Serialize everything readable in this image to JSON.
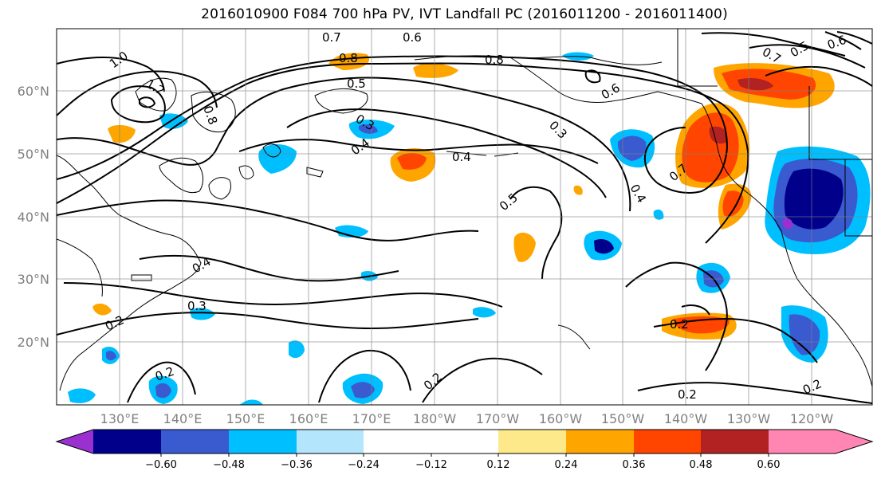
{
  "title": "2016010900 F084 700 hPa PV, IVT Landfall PC (2016011200 - 2016011400)",
  "lat_labels": [
    "60°N",
    "50°N",
    "40°N",
    "30°N",
    "20°N"
  ],
  "lon_labels": [
    "130°E",
    "140°E",
    "150°E",
    "160°E",
    "170°E",
    "180°W",
    "170°W",
    "160°W",
    "150°W",
    "140°W",
    "130°W",
    "120°W"
  ],
  "contour_labels": [
    "0.7",
    "0.6",
    "1.0",
    "0.8",
    "0.8",
    "1.2",
    "0.5",
    "0.8",
    "0.3",
    "0.4",
    "0.4",
    "0.3",
    "0.5",
    "0.4",
    "0.7",
    "0.4",
    "0.3",
    "0.2",
    "0.2",
    "0.2",
    "0.2",
    "0.2",
    "0.2",
    "0.7",
    "0.6",
    "0.5",
    "0.6"
  ],
  "colorbar": {
    "ticks": [
      "−0.60",
      "−0.48",
      "−0.36",
      "−0.24",
      "−0.12",
      "0.12",
      "0.24",
      "0.36",
      "0.48",
      "0.60"
    ],
    "colors": [
      "#9b30d0",
      "#00008b",
      "#3a5ad0",
      "#00bfff",
      "#b3e5fc",
      "#ffffff",
      "#fde98a",
      "#ffa500",
      "#ff4500",
      "#b22222",
      "#ff85b3"
    ]
  }
}
